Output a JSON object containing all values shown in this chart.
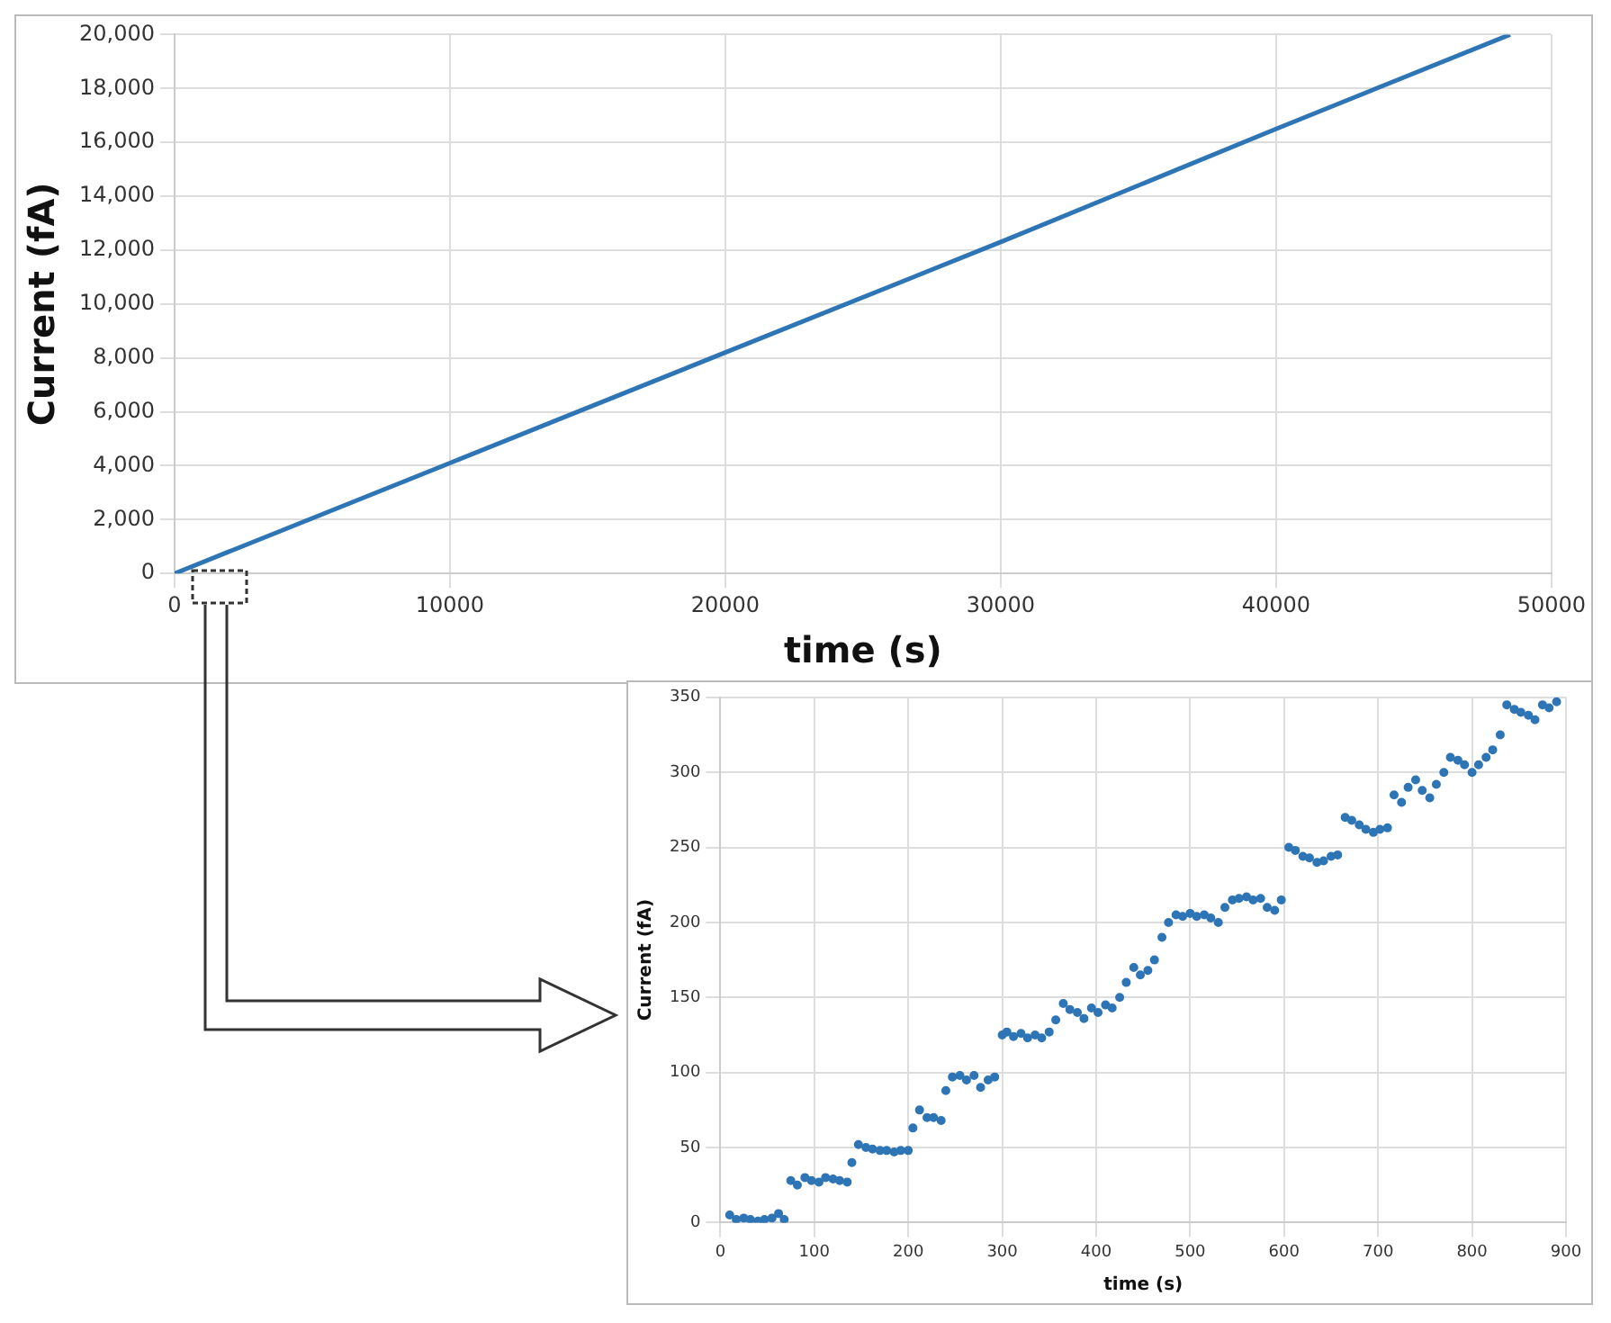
{
  "chart_data": [
    {
      "type": "line",
      "xlabel": "time (s)",
      "ylabel": "Current (fA)",
      "grid": true,
      "marker": "none",
      "line_style": "solid",
      "legend": false,
      "xlim": [
        0,
        50000
      ],
      "xticks": [
        0,
        10000,
        20000,
        30000,
        40000,
        50000
      ],
      "ylim": [
        0,
        20000
      ],
      "yticks": [
        {
          "value": 0,
          "label": "0"
        },
        {
          "value": 2000,
          "label": "2,000"
        },
        {
          "value": 4000,
          "label": "4,000"
        },
        {
          "value": 6000,
          "label": "6,000"
        },
        {
          "value": 8000,
          "label": "8,000"
        },
        {
          "value": 10000,
          "label": "10,000"
        },
        {
          "value": 12000,
          "label": "12,000"
        },
        {
          "value": 14000,
          "label": "14,000"
        },
        {
          "value": 16000,
          "label": "16,000"
        },
        {
          "value": 18000,
          "label": "18,000"
        },
        {
          "value": 20000,
          "label": "20,000"
        }
      ],
      "series": [
        {
          "color": "#2e75b6",
          "x": [
            0,
            10000,
            20000,
            30000,
            40000,
            48500
          ],
          "values": [
            0,
            4100,
            8200,
            12300,
            16500,
            20000
          ]
        }
      ]
    },
    {
      "type": "scatter",
      "xlabel": "time (s)",
      "ylabel": "Current (fA)",
      "grid": true,
      "marker": "circle",
      "legend": false,
      "xlim": [
        0,
        900
      ],
      "xticks": [
        0,
        100,
        200,
        300,
        400,
        500,
        600,
        700,
        800,
        900
      ],
      "ylim": [
        0,
        350
      ],
      "yticks": [
        0,
        50,
        100,
        150,
        200,
        250,
        300,
        350
      ],
      "series": [
        {
          "color": "#2e75b6",
          "x": [
            10,
            17,
            25,
            32,
            40,
            47,
            55,
            62,
            68,
            75,
            82,
            90,
            97,
            105,
            112,
            120,
            127,
            135,
            140,
            147,
            155,
            162,
            170,
            177,
            185,
            192,
            200,
            205,
            212,
            220,
            227,
            235,
            240,
            247,
            255,
            262,
            270,
            277,
            285,
            292,
            300,
            305,
            312,
            320,
            327,
            335,
            342,
            350,
            357,
            365,
            372,
            380,
            387,
            395,
            402,
            410,
            417,
            425,
            432,
            440,
            447,
            455,
            462,
            470,
            477,
            485,
            492,
            500,
            507,
            515,
            522,
            530,
            537,
            545,
            552,
            560,
            567,
            575,
            582,
            590,
            597,
            605,
            612,
            620,
            627,
            635,
            642,
            650,
            657,
            665,
            672,
            680,
            687,
            695,
            702,
            710,
            717,
            725,
            732,
            740,
            747,
            755,
            762,
            770,
            777,
            785,
            792,
            800,
            807,
            815,
            822,
            830,
            837,
            845,
            852,
            860,
            867,
            875,
            882,
            890
          ],
          "values": [
            5,
            2,
            3,
            2,
            1,
            2,
            3,
            6,
            2,
            28,
            25,
            30,
            28,
            27,
            30,
            29,
            28,
            27,
            40,
            52,
            50,
            49,
            48,
            48,
            47,
            48,
            48,
            63,
            75,
            70,
            70,
            68,
            88,
            97,
            98,
            95,
            98,
            90,
            95,
            97,
            125,
            127,
            124,
            126,
            123,
            125,
            123,
            127,
            135,
            146,
            142,
            140,
            136,
            143,
            140,
            145,
            143,
            150,
            160,
            170,
            165,
            168,
            175,
            190,
            200,
            205,
            204,
            206,
            204,
            205,
            203,
            200,
            210,
            215,
            216,
            217,
            215,
            216,
            210,
            208,
            215,
            250,
            248,
            244,
            243,
            240,
            241,
            244,
            245,
            270,
            268,
            265,
            262,
            260,
            262,
            263,
            285,
            280,
            290,
            295,
            288,
            283,
            292,
            300,
            310,
            308,
            305,
            300,
            305,
            310,
            315,
            325,
            345,
            342,
            340,
            338,
            335,
            345,
            343,
            347
          ]
        }
      ]
    }
  ]
}
